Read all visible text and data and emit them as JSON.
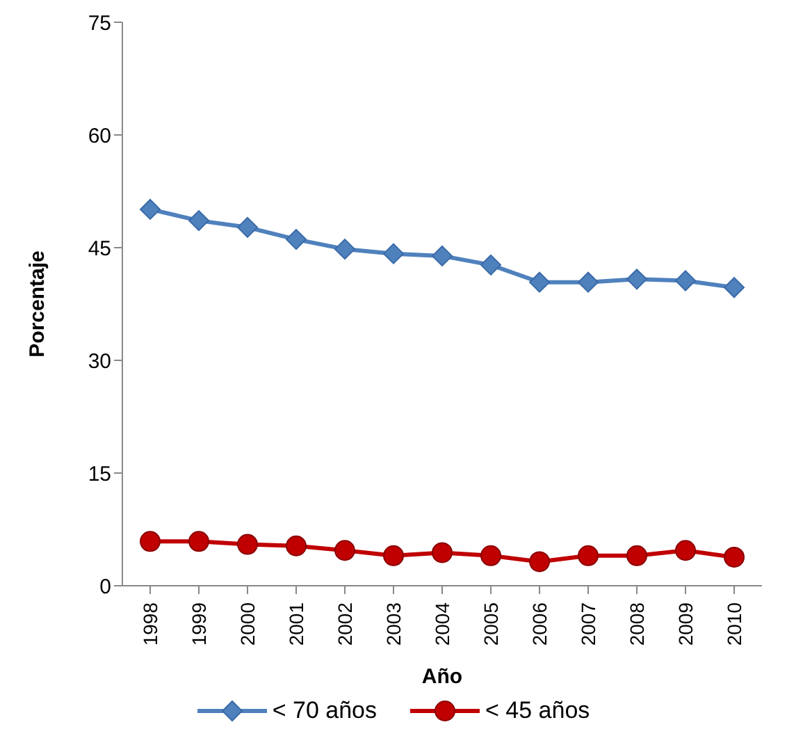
{
  "chart_data": {
    "type": "line",
    "xlabel": "Año",
    "ylabel": "Porcentaje",
    "categories": [
      "1998",
      "1999",
      "2000",
      "2001",
      "2002",
      "2003",
      "2004",
      "2005",
      "2006",
      "2007",
      "2008",
      "2009",
      "2010"
    ],
    "series": [
      {
        "name": "< 70 años",
        "color": "#4f81bd",
        "marker": "diamond",
        "values": [
          50.1,
          48.6,
          47.7,
          46.1,
          44.8,
          44.2,
          43.9,
          42.7,
          40.4,
          40.4,
          40.8,
          40.6,
          39.7
        ]
      },
      {
        "name": "< 45 años",
        "color": "#c00000",
        "marker": "circle",
        "values": [
          5.9,
          5.9,
          5.5,
          5.3,
          4.7,
          4.0,
          4.4,
          4.0,
          3.2,
          4.0,
          4.0,
          4.7,
          3.8
        ]
      }
    ],
    "ylim": [
      0,
      75
    ],
    "yticks": [
      0,
      15,
      30,
      45,
      60,
      75
    ],
    "grid": false,
    "legend": "bottom"
  }
}
